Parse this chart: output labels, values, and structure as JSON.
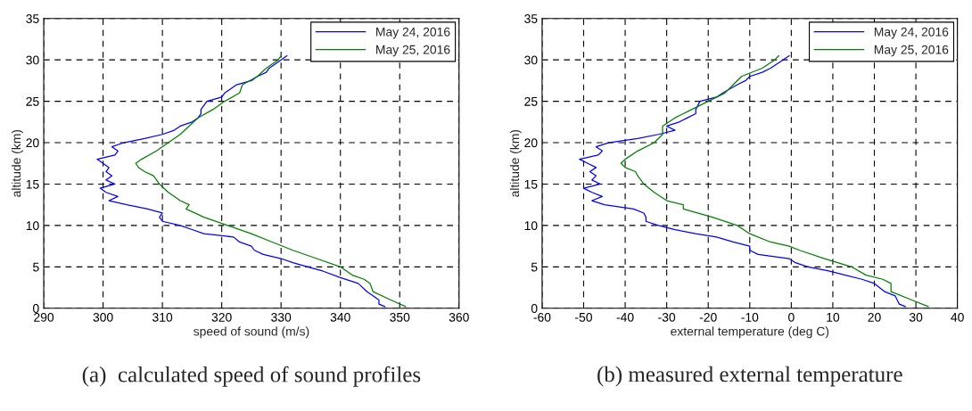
{
  "chart_data": [
    {
      "type": "line",
      "title": "(a)  calculated speed of sound profiles",
      "xlabel": "speed of sound (m/s)",
      "ylabel": "altitude (km)",
      "xlim": [
        290,
        360
      ],
      "xticks": [
        290,
        300,
        310,
        320,
        330,
        340,
        350,
        360
      ],
      "ylim": [
        0,
        35
      ],
      "yticks": [
        0,
        5,
        10,
        15,
        20,
        25,
        30,
        35
      ],
      "grid": true,
      "legend": "top right",
      "series": [
        {
          "name": "May 24, 2016",
          "color": "#0000ff",
          "x": [
            347.5,
            346.5,
            346.5,
            345.5,
            344.5,
            343,
            340,
            337,
            334.5,
            332,
            330,
            327,
            325.5,
            325,
            323,
            322,
            317,
            315,
            313,
            310,
            309.5,
            310,
            307.5,
            304,
            301,
            302.5,
            300.5,
            299.5,
            302,
            300.5,
            301.5,
            300.5,
            301,
            300,
            299,
            302,
            302.5,
            301.5,
            303.5,
            307,
            310,
            312,
            313,
            315,
            316,
            316.5,
            316.5,
            317.5,
            320,
            320.5,
            322.5,
            325,
            326,
            327.5,
            328,
            330,
            331
          ],
          "values": [
            0.2,
            0.5,
            1,
            1.5,
            2,
            3,
            3.7,
            4.5,
            5,
            5.5,
            6,
            6.5,
            7,
            7.5,
            8,
            8.6,
            9,
            9.5,
            10,
            10.5,
            11,
            11.5,
            12,
            12.5,
            13,
            13.5,
            14,
            14.5,
            15,
            15.5,
            16,
            16.5,
            17,
            17.5,
            18,
            18.5,
            19,
            19.5,
            20,
            20.5,
            21,
            21.5,
            22,
            22.5,
            23,
            23.5,
            24,
            25,
            25.5,
            26,
            27,
            27.5,
            28,
            28.5,
            29,
            30,
            30.5
          ]
        },
        {
          "name": "May 25, 2016",
          "color": "#008000",
          "x": [
            351,
            348.5,
            345.5,
            345,
            344,
            342,
            340,
            336,
            332,
            328.5,
            325,
            321,
            317,
            314,
            314.5,
            313,
            311,
            309.5,
            308.5,
            307,
            306,
            305.5,
            306.5,
            309,
            311,
            313,
            314.5,
            316,
            318.5,
            320.5,
            323,
            323.5,
            326,
            327.5,
            329.5,
            330
          ],
          "values": [
            0.2,
            1,
            2,
            3,
            3.5,
            4,
            5,
            6,
            7,
            8,
            9,
            10,
            11,
            12,
            12.5,
            13,
            14,
            15,
            16,
            16.5,
            17,
            17.5,
            18,
            19,
            20,
            21,
            22,
            23,
            24,
            25,
            26,
            27,
            28,
            29,
            30,
            30.5
          ]
        }
      ]
    },
    {
      "type": "line",
      "title": "(b) measured external temperature",
      "xlabel": "external temperature (deg C)",
      "ylabel": "altitude (km)",
      "xlim": [
        -60,
        40
      ],
      "xticks": [
        -60,
        -50,
        -40,
        -30,
        -20,
        -10,
        0,
        10,
        20,
        30,
        40
      ],
      "ylim": [
        0,
        35
      ],
      "yticks": [
        0,
        5,
        10,
        15,
        20,
        25,
        30,
        35
      ],
      "grid": true,
      "legend": "top right",
      "series": [
        {
          "name": "May 24, 2016",
          "color": "#0000ff",
          "x": [
            27.5,
            26,
            25.5,
            25,
            22.5,
            20,
            17,
            13,
            9,
            4,
            1,
            -0.5,
            -8,
            -10,
            -10,
            -14,
            -18,
            -23,
            -28,
            -32,
            -35,
            -35,
            -35.5,
            -38,
            -45,
            -48,
            -45.5,
            -48,
            -50,
            -46,
            -48,
            -47,
            -48.5,
            -47,
            -49,
            -51,
            -46.5,
            -45.5,
            -47,
            -44,
            -37,
            -32,
            -28,
            -30,
            -27,
            -25,
            -23,
            -23,
            -22,
            -18,
            -16.5,
            -13,
            -11,
            -10,
            -7,
            -5,
            -2,
            -0.5
          ],
          "values": [
            0.2,
            0.5,
            1,
            1.5,
            2,
            3,
            3.5,
            4,
            4.5,
            5,
            5.5,
            6,
            6.5,
            7,
            7.5,
            8,
            8.6,
            9,
            9.5,
            10,
            10.5,
            11,
            11.5,
            12,
            12.5,
            13,
            13.5,
            14,
            14.5,
            15,
            15.5,
            16,
            16.5,
            17,
            17.5,
            18,
            18.5,
            19,
            19.5,
            20,
            20.5,
            21,
            21.5,
            22,
            22.5,
            23,
            23.5,
            24,
            25,
            25.5,
            26,
            27,
            27.5,
            28,
            28.5,
            29,
            30,
            30.5
          ]
        },
        {
          "name": "May 25, 2016",
          "color": "#008000",
          "x": [
            33,
            29,
            24,
            24,
            22,
            18,
            14.5,
            8,
            2,
            -0.5,
            -5,
            -10,
            -13,
            -19,
            -26,
            -26,
            -30,
            -33,
            -35.5,
            -37,
            -37.5,
            -40,
            -41,
            -40,
            -37,
            -33,
            -31,
            -31,
            -28,
            -24,
            -20,
            -16,
            -14,
            -12,
            -7,
            -4,
            -3
          ],
          "values": [
            0.2,
            1,
            2,
            3,
            3.5,
            4,
            5,
            6,
            7,
            7.5,
            8,
            9,
            10,
            11,
            12,
            12.5,
            13,
            14,
            15,
            16,
            16.5,
            17,
            17.5,
            18,
            19,
            20,
            21,
            22,
            23,
            24,
            25,
            26,
            27,
            28,
            29,
            30,
            30.5
          ]
        }
      ]
    }
  ]
}
